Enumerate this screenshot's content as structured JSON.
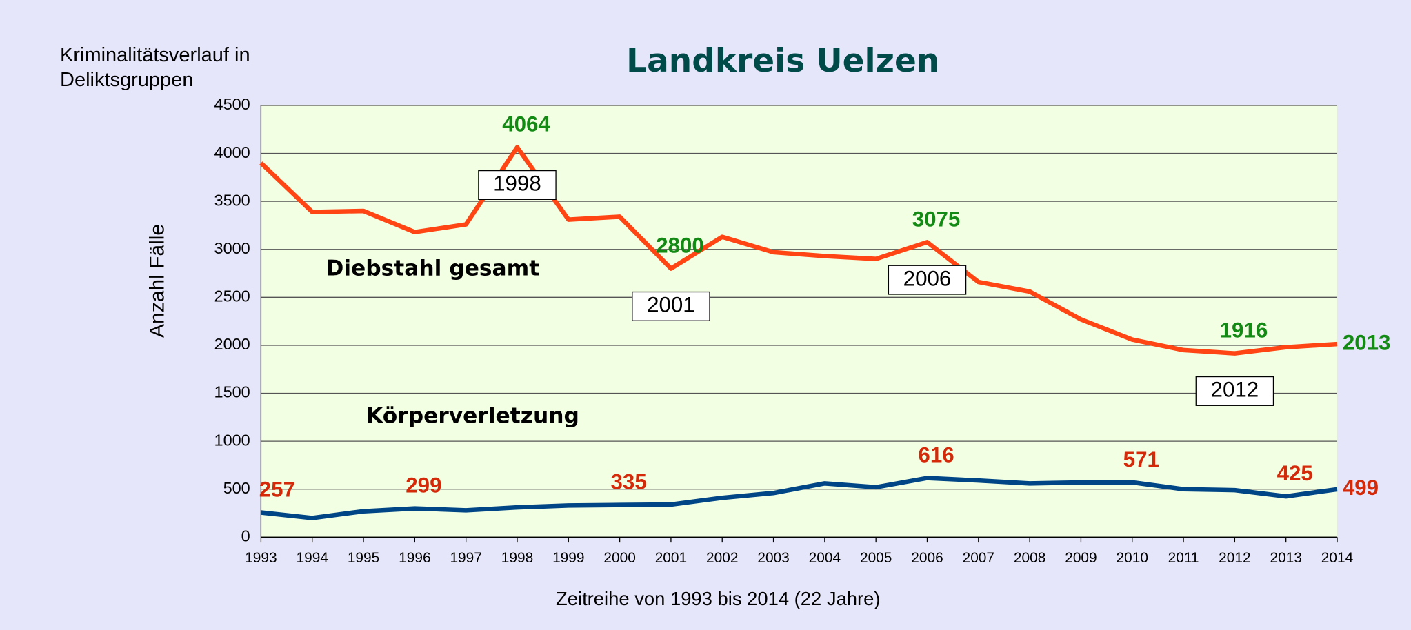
{
  "chart_data": {
    "type": "line",
    "title": "Landkreis Uelzen",
    "subtitle": "Kriminalitätsverlauf in Deliktsgruppen",
    "x_label": "Zeitreihe von 1993 bis 2014 (22 Jahre)",
    "y_label": "Anzahl Fälle",
    "categories": [
      "1993",
      "1994",
      "1995",
      "1996",
      "1997",
      "1998",
      "1999",
      "2000",
      "2001",
      "2002",
      "2003",
      "2004",
      "2005",
      "2006",
      "2007",
      "2008",
      "2009",
      "2010",
      "2011",
      "2012",
      "2013",
      "2014"
    ],
    "series": [
      {
        "name": "Diebstahl gesamt",
        "color": "#ff4513",
        "label_color": "#138a13",
        "values": [
          3900,
          3390,
          3400,
          3180,
          3260,
          4064,
          3310,
          3340,
          2800,
          3130,
          2970,
          2930,
          2900,
          3075,
          2660,
          2560,
          2270,
          2060,
          1950,
          1916,
          1980,
          2013
        ],
        "labeled_points": [
          5,
          8,
          13,
          19,
          21
        ],
        "year_boxes": [
          5,
          8,
          13,
          19
        ]
      },
      {
        "name": "Körperverletzung",
        "color": "#004586",
        "label_color": "#d42a0a",
        "values": [
          257,
          200,
          270,
          299,
          280,
          310,
          330,
          335,
          340,
          410,
          460,
          560,
          520,
          616,
          590,
          560,
          570,
          571,
          500,
          490,
          425,
          499
        ],
        "labeled_points": [
          0,
          3,
          7,
          13,
          17,
          20,
          21
        ]
      }
    ],
    "ylim": [
      0,
      4500
    ],
    "yticks": [
      0,
      500,
      1000,
      1500,
      2000,
      2500,
      3000,
      3500,
      4000,
      4500
    ],
    "grid": true
  }
}
